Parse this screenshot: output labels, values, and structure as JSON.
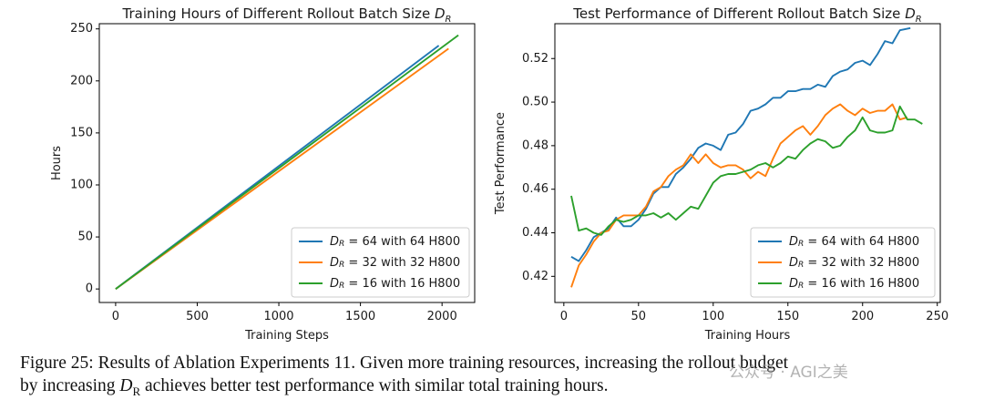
{
  "chart_data": [
    {
      "type": "line",
      "title_prefix": "Training Hours of Different Rollout Batch Size ",
      "title_var": "D",
      "title_sub": "R",
      "xlabel": "Training Steps",
      "ylabel": "Hours",
      "xlim": [
        -100,
        2200
      ],
      "ylim": [
        -13,
        255
      ],
      "xticks": [
        0,
        500,
        1000,
        1500,
        2000
      ],
      "yticks": [
        0,
        50,
        100,
        150,
        200,
        250
      ],
      "legend_position": "lower-right",
      "series": [
        {
          "var": "D",
          "sub": "R",
          "name": " = 64 with 64 H800",
          "color": "#1f77b4",
          "x": [
            0,
            1980
          ],
          "y": [
            0,
            234
          ]
        },
        {
          "var": "D",
          "sub": "R",
          "name": " = 32 with 32 H800",
          "color": "#ff7f0e",
          "x": [
            0,
            2040
          ],
          "y": [
            0,
            231
          ]
        },
        {
          "var": "D",
          "sub": "R",
          "name": " = 16 with 16 H800",
          "color": "#2ca02c",
          "x": [
            0,
            2100
          ],
          "y": [
            0,
            244
          ]
        }
      ]
    },
    {
      "type": "line",
      "title_prefix": "Test Performance of Different Rollout Batch Size ",
      "title_var": "D",
      "title_sub": "R",
      "xlabel": "Training Hours",
      "ylabel": "Test Performance",
      "xlim": [
        -6,
        252
      ],
      "ylim": [
        0.408,
        0.536
      ],
      "xticks": [
        0,
        50,
        100,
        150,
        200,
        250
      ],
      "yticks": [
        0.42,
        0.44,
        0.46,
        0.48,
        0.5,
        0.52
      ],
      "legend_position": "lower-right",
      "series": [
        {
          "var": "D",
          "sub": "R",
          "name": " = 64 with 64 H800",
          "color": "#1f77b4",
          "x": [
            5,
            10,
            15,
            20,
            25,
            30,
            35,
            40,
            45,
            50,
            55,
            60,
            65,
            70,
            75,
            80,
            85,
            90,
            95,
            100,
            105,
            110,
            115,
            120,
            125,
            130,
            135,
            140,
            145,
            150,
            155,
            160,
            165,
            170,
            175,
            180,
            185,
            190,
            195,
            200,
            205,
            210,
            215,
            220,
            225,
            232
          ],
          "y": [
            0.429,
            0.427,
            0.432,
            0.438,
            0.44,
            0.442,
            0.447,
            0.443,
            0.443,
            0.446,
            0.451,
            0.458,
            0.461,
            0.461,
            0.467,
            0.47,
            0.474,
            0.479,
            0.481,
            0.48,
            0.478,
            0.485,
            0.486,
            0.49,
            0.496,
            0.497,
            0.499,
            0.502,
            0.502,
            0.505,
            0.505,
            0.506,
            0.506,
            0.508,
            0.507,
            0.512,
            0.514,
            0.515,
            0.518,
            0.519,
            0.517,
            0.522,
            0.528,
            0.527,
            0.533,
            0.534
          ]
        },
        {
          "var": "D",
          "sub": "R",
          "name": " = 32 with 32 H800",
          "color": "#ff7f0e",
          "x": [
            5,
            10,
            15,
            20,
            25,
            30,
            35,
            40,
            45,
            50,
            55,
            60,
            65,
            70,
            75,
            80,
            85,
            90,
            95,
            100,
            105,
            110,
            115,
            120,
            125,
            130,
            135,
            140,
            145,
            150,
            155,
            160,
            165,
            170,
            175,
            180,
            185,
            190,
            195,
            200,
            205,
            210,
            215,
            220,
            225,
            230
          ],
          "y": [
            0.415,
            0.425,
            0.43,
            0.436,
            0.44,
            0.441,
            0.446,
            0.448,
            0.448,
            0.448,
            0.452,
            0.459,
            0.461,
            0.466,
            0.469,
            0.471,
            0.476,
            0.472,
            0.476,
            0.472,
            0.47,
            0.471,
            0.471,
            0.469,
            0.465,
            0.468,
            0.466,
            0.474,
            0.481,
            0.484,
            0.487,
            0.489,
            0.485,
            0.489,
            0.494,
            0.497,
            0.499,
            0.496,
            0.494,
            0.497,
            0.495,
            0.496,
            0.496,
            0.499,
            0.492,
            0.493
          ]
        },
        {
          "var": "D",
          "sub": "R",
          "name": " = 16 with 16 H800",
          "color": "#2ca02c",
          "x": [
            5,
            10,
            15,
            20,
            25,
            30,
            35,
            40,
            45,
            50,
            55,
            60,
            65,
            70,
            75,
            80,
            85,
            90,
            95,
            100,
            105,
            110,
            115,
            120,
            125,
            130,
            135,
            140,
            145,
            150,
            155,
            160,
            165,
            170,
            175,
            180,
            185,
            190,
            195,
            200,
            205,
            210,
            215,
            220,
            225,
            230,
            235,
            240
          ],
          "y": [
            0.457,
            0.441,
            0.442,
            0.44,
            0.439,
            0.443,
            0.446,
            0.445,
            0.446,
            0.448,
            0.448,
            0.449,
            0.447,
            0.449,
            0.446,
            0.449,
            0.452,
            0.451,
            0.457,
            0.463,
            0.466,
            0.467,
            0.467,
            0.468,
            0.469,
            0.471,
            0.472,
            0.47,
            0.472,
            0.475,
            0.474,
            0.478,
            0.481,
            0.483,
            0.482,
            0.479,
            0.48,
            0.484,
            0.487,
            0.493,
            0.487,
            0.486,
            0.486,
            0.487,
            0.498,
            0.492,
            0.492,
            0.49
          ]
        }
      ]
    }
  ],
  "caption": {
    "line1": "Figure 25: Results of Ablation Experiments 11. Given more training resources, increasing the rollout budget",
    "line2_prefix": "by increasing ",
    "line2_var": "D",
    "line2_sub": "R",
    "line2_suffix": " achieves better test performance with similar total training hours."
  },
  "watermark": "公众号 · AGI之美",
  "colors": {
    "blue": "#1f77b4",
    "orange": "#ff7f0e",
    "green": "#2ca02c"
  }
}
